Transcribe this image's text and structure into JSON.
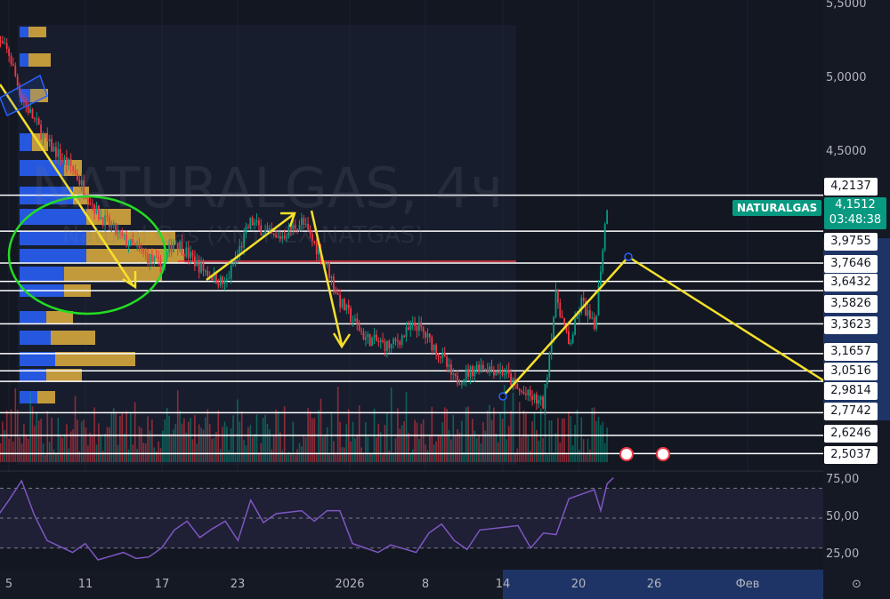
{
  "chart_data": {
    "type": "candlestick",
    "symbol": "NATURALGAS",
    "watermark_title": "NATURALGAS, 4ч",
    "watermark_subtitle": "Natural Gas (XNYMEX:NATGAS)",
    "timeframe": "4ч",
    "last_price": "4,1512",
    "countdown": "03:48:38",
    "price_axis_ticks": [
      "5,5000",
      "5,0000",
      "4,5000"
    ],
    "ylim": [
      2.45,
      5.5
    ],
    "level_lines": [
      "4,2137",
      "3,9755",
      "3,7646",
      "3,6432",
      "3,5826",
      "3,3623",
      "3,1657",
      "3,0516",
      "2,9814",
      "2,7742",
      "2,6246",
      "2,5037"
    ],
    "time_axis_ticks": [
      "5",
      "11",
      "17",
      "23",
      "2026",
      "8",
      "14",
      "20",
      "26",
      "Фев"
    ],
    "price_path": [
      [
        "2025-12-04",
        5.25
      ],
      [
        "2025-12-05",
        5.15
      ],
      [
        "2025-12-06",
        4.86
      ],
      [
        "2025-12-08",
        4.56
      ],
      [
        "2025-12-10",
        4.39
      ],
      [
        "2025-12-12",
        4.09
      ],
      [
        "2025-12-14",
        3.92
      ],
      [
        "2025-12-17",
        3.74
      ],
      [
        "2025-12-18",
        3.92
      ],
      [
        "2025-12-20",
        3.74
      ],
      [
        "2025-12-22",
        3.62
      ],
      [
        "2025-12-24",
        4.04
      ],
      [
        "2025-12-26",
        3.92
      ],
      [
        "2025-12-28",
        4.04
      ],
      [
        "2025-12-30",
        3.74
      ],
      [
        "2025-12-31",
        3.51
      ],
      [
        "2026-01-02",
        3.27
      ],
      [
        "2026-01-04",
        3.21
      ],
      [
        "2026-01-06",
        3.36
      ],
      [
        "2026-01-08",
        3.15
      ],
      [
        "2026-01-09",
        2.98
      ],
      [
        "2026-01-11",
        3.09
      ],
      [
        "2026-01-13",
        3.04
      ],
      [
        "2026-01-14",
        2.92
      ],
      [
        "2026-01-16",
        2.83
      ],
      [
        "2026-01-17",
        3.56
      ],
      [
        "2026-01-18",
        3.21
      ],
      [
        "2026-01-19",
        3.51
      ],
      [
        "2026-01-20",
        3.33
      ],
      [
        "2026-01-21",
        4.15
      ]
    ],
    "rsi": {
      "ticks": [
        "75,00",
        "50,00",
        "25,00"
      ],
      "bands": [
        30,
        50,
        70
      ],
      "color": "#7e57c2",
      "path": [
        [
          "2025-12-04",
          50
        ],
        [
          "2025-12-05",
          62
        ],
        [
          "2025-12-06",
          75
        ],
        [
          "2025-12-07",
          52
        ],
        [
          "2025-12-08",
          35
        ],
        [
          "2025-12-10",
          27
        ],
        [
          "2025-12-11",
          33
        ],
        [
          "2025-12-12",
          22
        ],
        [
          "2025-12-14",
          27
        ],
        [
          "2025-12-15",
          23
        ],
        [
          "2025-12-16",
          24
        ],
        [
          "2025-12-17",
          30
        ],
        [
          "2025-12-18",
          42
        ],
        [
          "2025-12-19",
          48
        ],
        [
          "2025-12-20",
          37
        ],
        [
          "2025-12-21",
          43
        ],
        [
          "2025-12-22",
          48
        ],
        [
          "2025-12-23",
          35
        ],
        [
          "2025-12-24",
          62
        ],
        [
          "2025-12-25",
          47
        ],
        [
          "2025-12-26",
          53
        ],
        [
          "2025-12-28",
          55
        ],
        [
          "2025-12-29",
          48
        ],
        [
          "2025-12-30",
          55
        ],
        [
          "2025-12-31",
          55
        ],
        [
          "2026-01-01",
          33
        ],
        [
          "2026-01-03",
          27
        ],
        [
          "2026-01-04",
          32
        ],
        [
          "2026-01-06",
          27
        ],
        [
          "2026-01-07",
          40
        ],
        [
          "2026-01-08",
          46
        ],
        [
          "2026-01-09",
          35
        ],
        [
          "2026-01-10",
          29
        ],
        [
          "2026-01-11",
          42
        ],
        [
          "2026-01-13",
          44
        ],
        [
          "2026-01-14",
          45
        ],
        [
          "2026-01-15",
          30
        ],
        [
          "2026-01-16",
          40
        ],
        [
          "2026-01-17",
          39
        ],
        [
          "2026-01-18",
          63
        ],
        [
          "2026-01-19",
          66
        ],
        [
          "2026-01-20",
          69
        ],
        [
          "2026-01-20T12:00",
          55
        ],
        [
          "2026-01-21",
          73
        ],
        [
          "2026-01-21T12:00",
          77
        ]
      ]
    },
    "colors": {
      "up": "#089981",
      "down": "#f23645",
      "annotation": "#f5e02a",
      "circle": "#22dd22",
      "vp_up": "#2962ff",
      "vp_down": "#e0b040"
    }
  }
}
